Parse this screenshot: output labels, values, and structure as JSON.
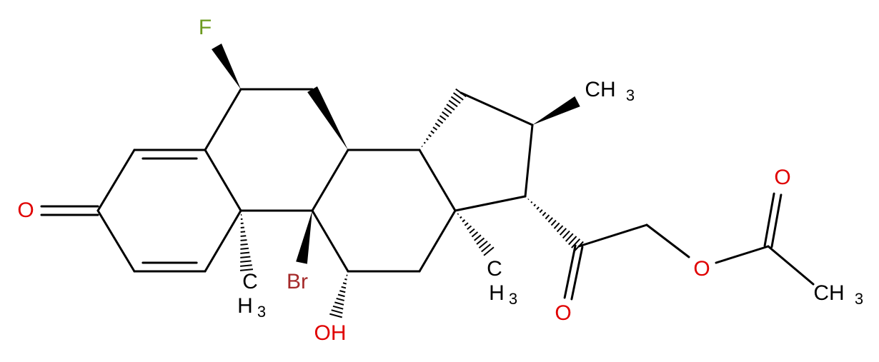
{
  "atoms": {
    "fluorine": "F",
    "ketone_oxygen": "O",
    "bromine": "Br",
    "hydroxyl": "OH",
    "methyl_10": {
      "top": "C",
      "bottom": "H",
      "sub": "3"
    },
    "methyl_13": {
      "top": "C",
      "bottom": "H",
      "sub": "3"
    },
    "methyl_16": {
      "text": "CH",
      "sub": "3"
    },
    "carbonyl_oxygen": "O",
    "ester_oxygen": "O",
    "acetyl_oxygen": "O",
    "acetyl_methyl": {
      "text": "CH",
      "sub": "3"
    }
  }
}
